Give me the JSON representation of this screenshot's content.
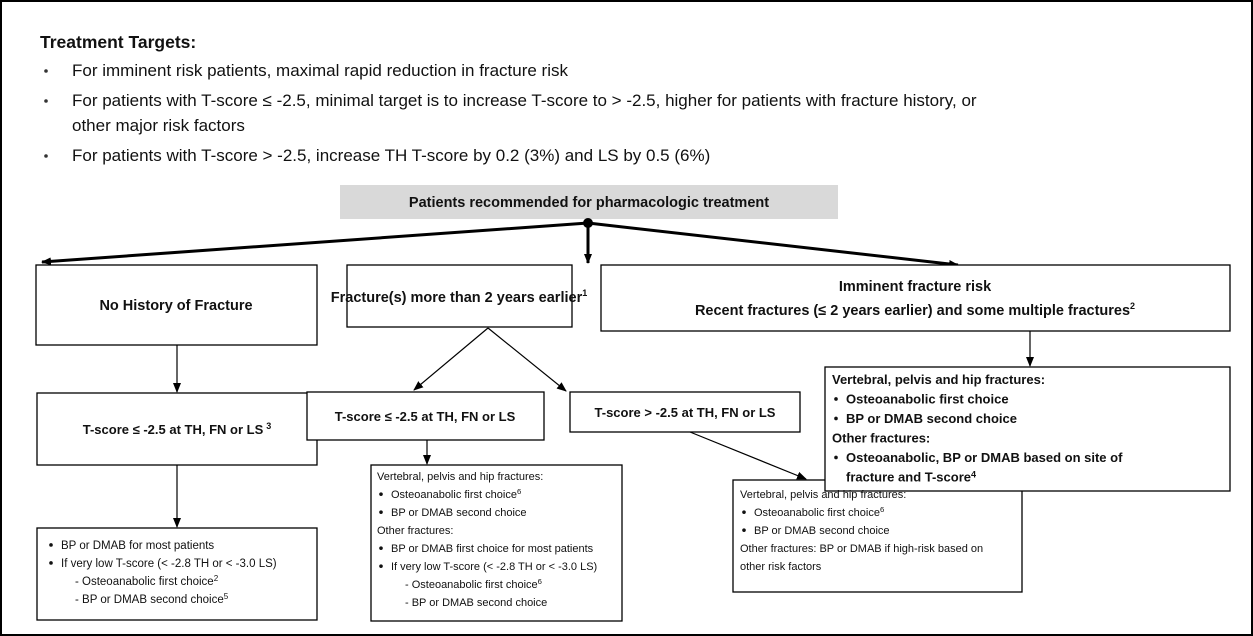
{
  "targets": {
    "title": "Treatment Targets:",
    "items": [
      {
        "lines": [
          "For imminent risk patients, maximal rapid reduction in fracture risk"
        ]
      },
      {
        "lines": [
          "For patients with T-score ≤ -2.5, minimal target is to increase T-score to > -2.5, higher for patients with fracture history, or",
          "other major risk factors"
        ]
      },
      {
        "lines": [
          "For patients with T-score > -2.5, increase TH T-score by 0.2 (3%) and LS by 0.5 (6%)"
        ]
      }
    ]
  },
  "root": "Patients recommended for pharmacologic treatment",
  "nodes": {
    "no_history": {
      "label": "No History of Fracture"
    },
    "older_fracture": {
      "label": "Fracture(s) more than 2 years earlier",
      "sup": "1"
    },
    "imminent": {
      "label": "Imminent fracture risk",
      "sublabel": "Recent fractures (≤ 2 years earlier) and some multiple fractures",
      "sup": "2"
    },
    "left_criteria": {
      "label": "T-score ≤ -2.5 at TH, FN or LS",
      "sup": "3"
    },
    "mid_low": {
      "label": "T-score ≤ -2.5 at TH, FN or LS"
    },
    "mid_high": {
      "label": "T-score > -2.5 at TH, FN or LS"
    },
    "left_rec": {
      "lines": [
        {
          "text": "BP or DMAB for most patients"
        },
        {
          "text": "If very low T-score  (< -2.8 TH or < -3.0 LS)"
        },
        {
          "text": "- Osteoanabolic first choice",
          "sup": "2"
        },
        {
          "text": "- BP or DMAB second choice",
          "sup": "5"
        }
      ]
    },
    "mid_low_rec": {
      "lines": [
        {
          "text": "Vertebral, pelvis and hip fractures:"
        },
        {
          "text": "Osteoanabolic first choice",
          "sup": "6"
        },
        {
          "text": "BP or DMAB second choice"
        },
        {
          "text": "Other fractures:"
        },
        {
          "text": "BP or DMAB first choice for most patients"
        },
        {
          "text": "If very low T-score (< -2.8 TH or < -3.0 LS)"
        },
        {
          "text": "- Osteoanabolic first choice",
          "sup": "6"
        },
        {
          "text": "- BP or DMAB second choice"
        }
      ]
    },
    "mid_high_rec": {
      "lines": [
        {
          "text": "Vertebral, pelvis and hip fractures:"
        },
        {
          "text": "Osteoanabolic first choice",
          "sup": "6"
        },
        {
          "text": "BP or DMAB second choice"
        },
        {
          "text": "Other fractures: BP or DMAB if high-risk based on"
        },
        {
          "text": "other risk factors"
        }
      ]
    },
    "imminent_rec": {
      "lines": [
        {
          "text": "Vertebral, pelvis and hip fractures:"
        },
        {
          "text": "Osteoanabolic first choice"
        },
        {
          "text": "BP or DMAB second choice"
        },
        {
          "text": "Other fractures:"
        },
        {
          "text": "Osteoanabolic, BP or DMAB based on site of"
        },
        {
          "text": "fracture and T-score",
          "sup": "4"
        }
      ]
    }
  }
}
